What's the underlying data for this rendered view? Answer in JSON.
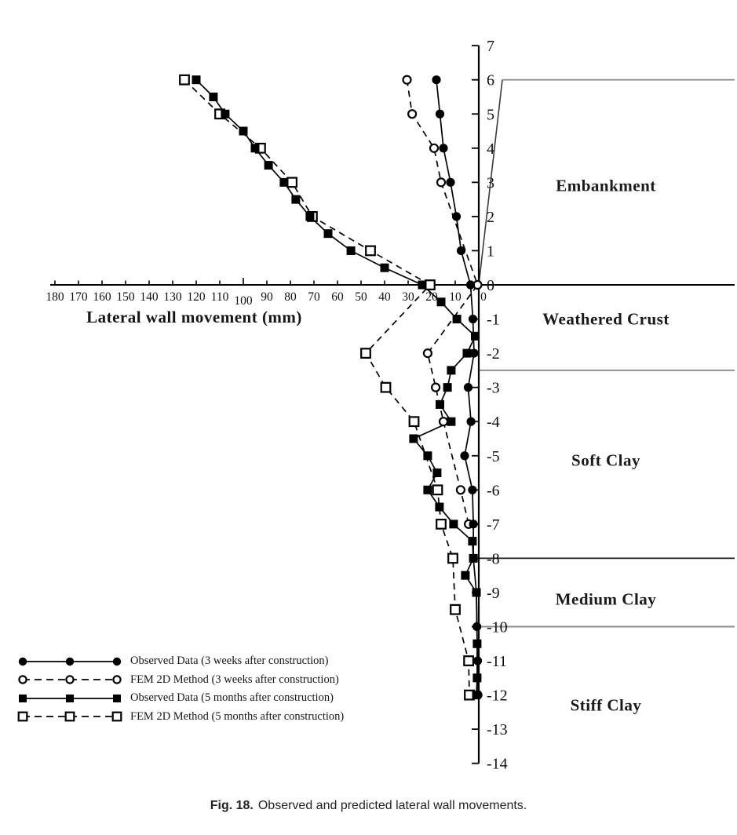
{
  "figure": {
    "caption_prefix": "Fig. 18.",
    "caption": "Observed and predicted lateral wall movements."
  },
  "chart_data": {
    "type": "line",
    "title": "",
    "xlabel": "Lateral wall movement (mm)",
    "ylabel": "",
    "x_axis": {
      "min": 0,
      "max": 180,
      "tick_step": 10,
      "reversed": true,
      "tick_labels": [
        "180",
        "170",
        "160",
        "150",
        "140",
        "130",
        "120",
        "110",
        "100",
        "90",
        "80",
        "70",
        "60",
        "50",
        "40",
        "30",
        "20",
        "10",
        "0"
      ]
    },
    "y_axis": {
      "min": -14,
      "max": 7,
      "tick_step": 1,
      "tick_labels": [
        "7",
        "6",
        "5",
        "4",
        "3",
        "2",
        "1",
        "0",
        "-1",
        "-2",
        "-3",
        "-4",
        "-5",
        "-6",
        "-7",
        "-8",
        "-9",
        "-10",
        "-11",
        "-12",
        "-13",
        "-14"
      ]
    },
    "points_format": "[elevation, movement_mm]",
    "grid": false,
    "legend_position": "bottom-left",
    "series": [
      {
        "name": "Observed Data (3 weeks after construction)",
        "marker": "filled-circle",
        "line_style": "solid",
        "color": "#000000",
        "points": [
          [
            6,
            18
          ],
          [
            5,
            16.5
          ],
          [
            4,
            15
          ],
          [
            3,
            12
          ],
          [
            2,
            9.5
          ],
          [
            1,
            7.5
          ],
          [
            0,
            3.5
          ],
          [
            -1,
            2.5
          ],
          [
            -2,
            2
          ],
          [
            -3,
            4.5
          ],
          [
            -4,
            3.3
          ],
          [
            -5,
            6
          ],
          [
            -6,
            2.7
          ],
          [
            -7,
            2.3
          ],
          [
            -8,
            2.3
          ],
          [
            -9,
            1
          ],
          [
            -10,
            0.8
          ],
          [
            -11,
            0.5
          ],
          [
            -12,
            0.3
          ]
        ]
      },
      {
        "name": "FEM 2D Method (3 weeks after construction)",
        "marker": "open-circle",
        "line_style": "dashed",
        "color": "#000000",
        "points": [
          [
            6,
            30.5
          ],
          [
            5,
            28.3
          ],
          [
            4,
            19
          ],
          [
            3,
            16
          ],
          [
            0,
            0.5
          ],
          [
            -2,
            21.7
          ],
          [
            -3,
            18.3
          ],
          [
            -4,
            15
          ],
          [
            -6,
            7.7
          ],
          [
            -7,
            4.3
          ]
        ]
      },
      {
        "name": "Observed Data (5 months after construction)",
        "marker": "filled-square",
        "line_style": "solid",
        "color": "#000000",
        "points": [
          [
            6,
            120
          ],
          [
            5.5,
            112.7
          ],
          [
            5,
            107.7
          ],
          [
            4.5,
            100
          ],
          [
            4,
            95
          ],
          [
            3.5,
            89.3
          ],
          [
            3,
            82.7
          ],
          [
            2.5,
            77.7
          ],
          [
            2,
            71.7
          ],
          [
            1.5,
            64
          ],
          [
            1,
            54.3
          ],
          [
            0.5,
            40
          ],
          [
            0,
            24
          ],
          [
            -0.5,
            16
          ],
          [
            -1,
            9.3
          ],
          [
            -1.5,
            1.5
          ],
          [
            -2,
            5
          ],
          [
            -2.5,
            11.7
          ],
          [
            -3,
            13.3
          ],
          [
            -3.5,
            16.5
          ],
          [
            -4,
            11.7
          ],
          [
            -4.5,
            27.7
          ],
          [
            -5,
            21.7
          ],
          [
            -5.5,
            17.7
          ],
          [
            -6,
            21.7
          ],
          [
            -6.5,
            16.7
          ],
          [
            -7,
            10.7
          ],
          [
            -7.5,
            2.7
          ],
          [
            -8,
            2.3
          ],
          [
            -8.5,
            5.7
          ],
          [
            -9,
            1
          ],
          [
            -10.5,
            0.7
          ],
          [
            -11.5,
            0.7
          ],
          [
            -12,
            1
          ]
        ]
      },
      {
        "name": "FEM 2D Method (5 months after construction)",
        "marker": "open-square",
        "line_style": "dashed",
        "color": "#000000",
        "points": [
          [
            6,
            125
          ],
          [
            5,
            110
          ],
          [
            4,
            92.7
          ],
          [
            3,
            79.3
          ],
          [
            2,
            70.7
          ],
          [
            1,
            46
          ],
          [
            0,
            20.7
          ],
          [
            -2,
            48
          ],
          [
            -3,
            39.5
          ],
          [
            -4,
            27.5
          ],
          [
            -6,
            17.5
          ],
          [
            -7,
            16
          ],
          [
            -8,
            11
          ],
          [
            -9.5,
            10
          ],
          [
            -11,
            4.3
          ],
          [
            -12,
            4
          ]
        ]
      }
    ],
    "soil_layers": [
      {
        "label": "Embankment",
        "label_elevation": 2.9
      },
      {
        "label": "Weathered Crust",
        "label_elevation": -1.0
      },
      {
        "label": "Soft Clay",
        "label_elevation": -5.15
      },
      {
        "label": "Medium Clay",
        "label_elevation": -9.2
      },
      {
        "label": "Stiff Clay",
        "label_elevation": -12.3
      }
    ],
    "boundary_lines": [
      {
        "elevation": 6,
        "color": "#8f8f8f",
        "starts_at_crest": true
      },
      {
        "elevation": 0,
        "color": "#000000"
      },
      {
        "elevation": -2.5,
        "color": "#8f8f8f"
      },
      {
        "elevation": -8,
        "color": "#1a1a1a"
      },
      {
        "elevation": -10,
        "color": "#8f8f8f"
      }
    ],
    "embankment_crest_elevation": 6
  }
}
